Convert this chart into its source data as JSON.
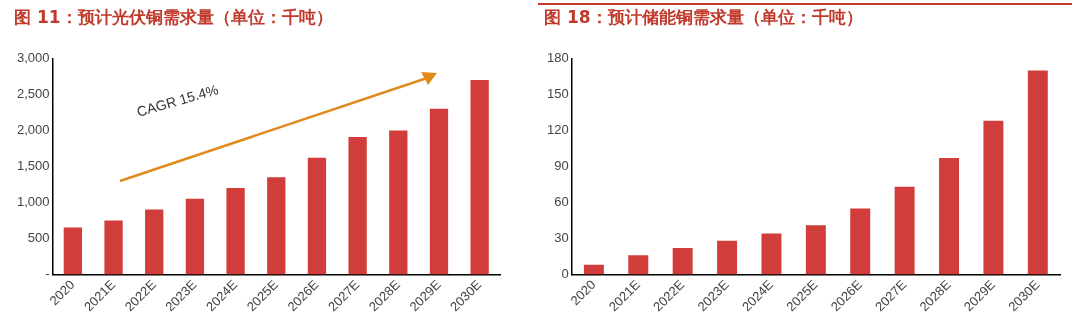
{
  "chart_data": [
    {
      "type": "bar",
      "title": "图 11：预计光伏铜需求量（单位：千吨）",
      "categories": [
        "2020",
        "2021E",
        "2022E",
        "2023E",
        "2024E",
        "2025E",
        "2026E",
        "2027E",
        "2028E",
        "2029E",
        "2030E"
      ],
      "values": [
        650,
        750,
        900,
        1050,
        1200,
        1350,
        1620,
        1910,
        2000,
        2300,
        2700
      ],
      "color": "#d03d3a",
      "ylim": [
        0,
        3000
      ],
      "yticks": [
        {
          "value": 0,
          "label": "-"
        },
        {
          "value": 500,
          "label": "500"
        },
        {
          "value": 1000,
          "label": "1,000"
        },
        {
          "value": 1500,
          "label": "1,500"
        },
        {
          "value": 2000,
          "label": "2,000"
        },
        {
          "value": 2500,
          "label": "2,500"
        },
        {
          "value": 3000,
          "label": "3,000"
        }
      ],
      "grid": false,
      "legend": false,
      "annotations": [
        "CAGR 15.4%"
      ]
    },
    {
      "type": "bar",
      "title": "图 18：预计储能铜需求量（单位：千吨）",
      "categories": [
        "2020",
        "2021E",
        "2022E",
        "2023E",
        "2024E",
        "2025E",
        "2026E",
        "2027E",
        "2028E",
        "2029E",
        "2030E"
      ],
      "values": [
        8,
        16,
        22,
        28,
        34,
        41,
        55,
        73,
        97,
        128,
        170
      ],
      "color": "#d03d3a",
      "ylim": [
        0,
        180
      ],
      "yticks": [
        0,
        30,
        60,
        90,
        120,
        150,
        180
      ],
      "grid": false,
      "legend": false
    }
  ]
}
